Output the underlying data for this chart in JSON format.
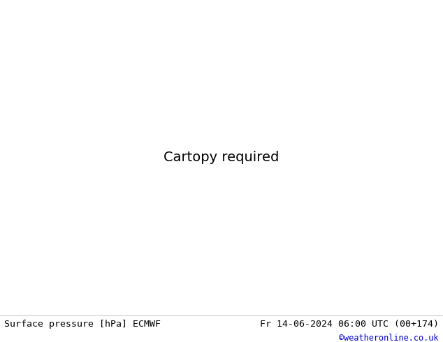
{
  "title_left": "Surface pressure [hPa] ECMWF",
  "title_right": "Fr 14-06-2024 06:00 UTC (00+174)",
  "credit": "©weatheronline.co.uk",
  "land_color": "#aad080",
  "sea_color": "#c8e0f0",
  "border_color": "#888888",
  "coastline_color": "#444444",
  "fig_width": 6.34,
  "fig_height": 4.9,
  "dpi": 100,
  "bottom_bar_color": "#ffffff",
  "title_fontsize": 9.5,
  "credit_fontsize": 8.5,
  "credit_color": "#0000cc",
  "text_color": "#000000",
  "isobar_blue_color": "#0000cc",
  "isobar_black_color": "#000000",
  "isobar_red_color": "#cc0000",
  "label_fontsize": 6.5,
  "lon_min": 24.0,
  "lon_max": 110.0,
  "lat_min": 4.0,
  "lat_max": 55.0,
  "contour_levels_blue": [
    996,
    1000,
    1004,
    1008,
    1012,
    1016
  ],
  "contour_levels_black": [
    1013
  ],
  "contour_levels_red": [
    1016
  ]
}
